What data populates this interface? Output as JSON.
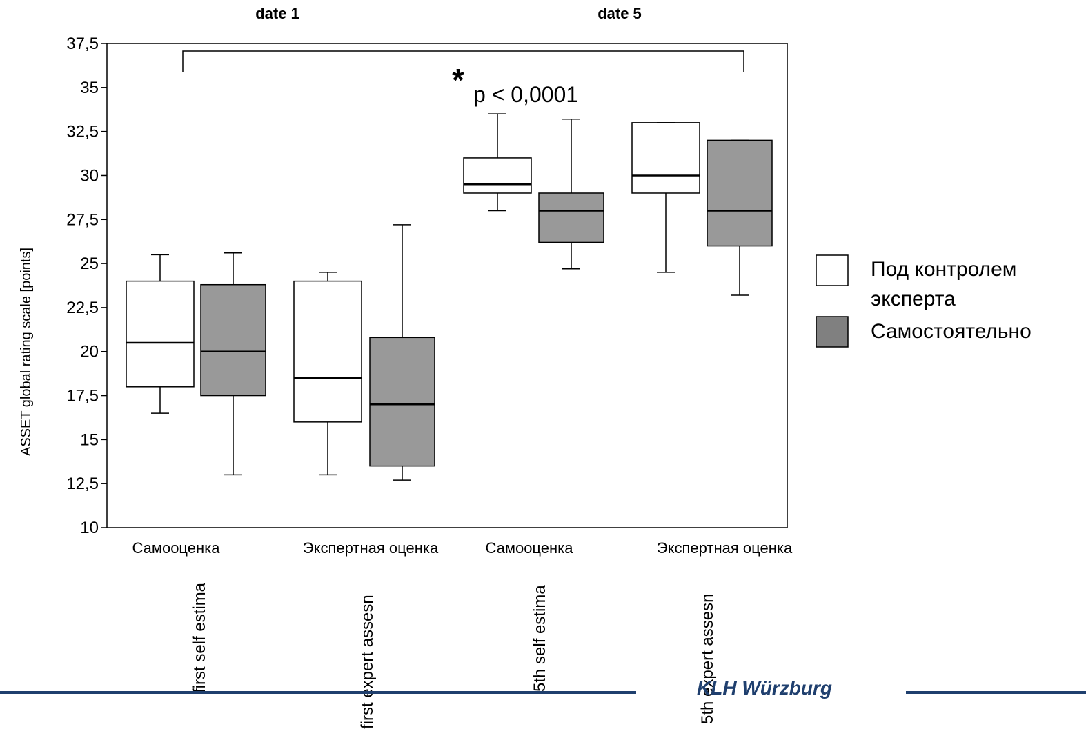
{
  "chart_data": {
    "type": "box",
    "ylabel": "ASSET  global rating scale [points]",
    "ylim": [
      10,
      37.5
    ],
    "yticks": [
      "10",
      "12,5",
      "15",
      "17,5",
      "20",
      "22,5",
      "25",
      "27,5",
      "30",
      "32,5",
      "35",
      "37,5"
    ],
    "yticks_values": [
      10,
      12.5,
      15,
      17.5,
      20,
      22.5,
      25,
      27.5,
      30,
      32.5,
      35,
      37.5
    ],
    "grid": false,
    "date_labels": [
      "date 1",
      "date 5"
    ],
    "categories": [
      "Самооценка",
      "Экспертная оценка",
      "Самооценка",
      "Экспертная оценка"
    ],
    "sub_labels": [
      "first self estima",
      "first expert assesn",
      "5th self estima",
      "5th expert assesn"
    ],
    "legend_position": "right",
    "series": [
      {
        "name": "Под контролем эксперта",
        "color": "#ffffff",
        "boxes": [
          {
            "min": 16.5,
            "q1": 18.0,
            "median": 20.5,
            "q3": 24.0,
            "max": 25.5
          },
          {
            "min": 13.0,
            "q1": 16.0,
            "median": 18.5,
            "q3": 24.0,
            "max": 24.5
          },
          {
            "min": 28.0,
            "q1": 29.0,
            "median": 29.5,
            "q3": 31.0,
            "max": 33.5
          },
          {
            "min": 24.5,
            "q1": 29.0,
            "median": 30.0,
            "q3": 33.0,
            "max": 33.0
          }
        ]
      },
      {
        "name": "Самостоятельно",
        "color": "#999999",
        "boxes": [
          {
            "min": 13.0,
            "q1": 17.5,
            "median": 20.0,
            "q3": 23.8,
            "max": 25.6
          },
          {
            "min": 12.7,
            "q1": 13.5,
            "median": 17.0,
            "q3": 20.8,
            "max": 27.2
          },
          {
            "min": 24.7,
            "q1": 26.2,
            "median": 28.0,
            "q3": 29.0,
            "max": 33.2
          },
          {
            "min": 23.2,
            "q1": 26.0,
            "median": 28.0,
            "q3": 32.0,
            "max": 32.0
          }
        ]
      }
    ],
    "annotation": {
      "star": "*",
      "text": "p < 0,0001"
    },
    "footer": "KLH Würzburg",
    "colors": {
      "footer_line": "#1f3f6e",
      "footer_text": "#1f3f6e",
      "legend_swatch_1": "#ffffff",
      "legend_swatch_2": "#808080"
    }
  }
}
